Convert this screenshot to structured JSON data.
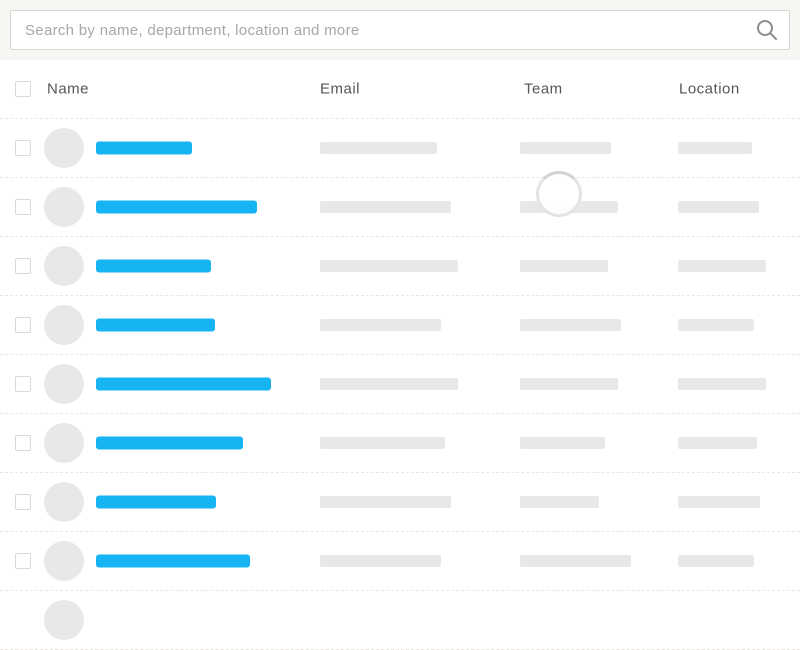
{
  "search": {
    "placeholder": "Search by name, department, location and more",
    "value": "",
    "icon": "search-icon"
  },
  "table": {
    "columns": [
      "Name",
      "Email",
      "Team",
      "Location"
    ],
    "rows": [
      {
        "name_w": 96,
        "email_w": 117,
        "team_w": 91,
        "location_w": 74
      },
      {
        "name_w": 161,
        "email_w": 131,
        "team_w": 98,
        "location_w": 81
      },
      {
        "name_w": 115,
        "email_w": 138,
        "team_w": 88,
        "location_w": 88
      },
      {
        "name_w": 119,
        "email_w": 121,
        "team_w": 101,
        "location_w": 76
      },
      {
        "name_w": 175,
        "email_w": 138,
        "team_w": 98,
        "location_w": 88
      },
      {
        "name_w": 147,
        "email_w": 125,
        "team_w": 85,
        "location_w": 79
      },
      {
        "name_w": 120,
        "email_w": 131,
        "team_w": 79,
        "location_w": 82
      },
      {
        "name_w": 154,
        "email_w": 121,
        "team_w": 111,
        "location_w": 76
      },
      {
        "partial": true
      }
    ]
  },
  "state": {
    "loading": true,
    "spinner_icon": "loading-spinner"
  },
  "colors": {
    "accent_blue": "#16b4f2",
    "skeleton_gray": "#e9e8e6",
    "page_bg": "#f7f6f2",
    "divider": "#eae7e1"
  }
}
